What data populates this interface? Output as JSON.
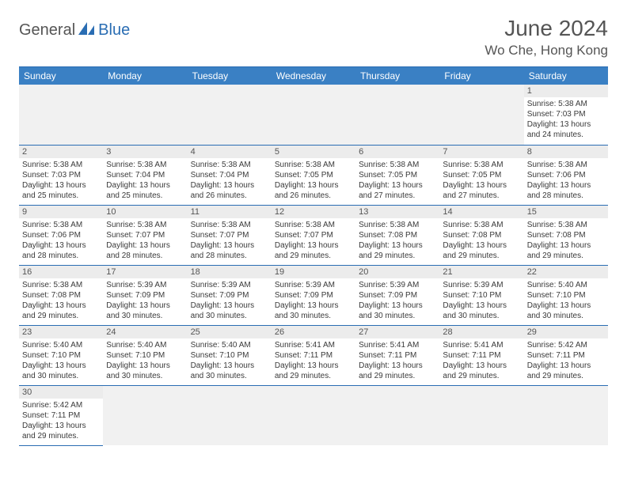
{
  "logo": {
    "text1": "General",
    "text2": "Blue"
  },
  "header": {
    "month": "June 2024",
    "location": "Wo Che, Hong Kong"
  },
  "colors": {
    "header_bg": "#3a80c4",
    "header_text": "#ffffff",
    "border": "#2a6db3",
    "daynum_bg": "#ececec",
    "empty_bg": "#f1f1f1",
    "title_color": "#555555",
    "body_text": "#3a3a3a"
  },
  "dayNames": [
    "Sunday",
    "Monday",
    "Tuesday",
    "Wednesday",
    "Thursday",
    "Friday",
    "Saturday"
  ],
  "weeks": [
    [
      null,
      null,
      null,
      null,
      null,
      null,
      {
        "n": "1",
        "sr": "Sunrise: 5:38 AM",
        "ss": "Sunset: 7:03 PM",
        "d1": "Daylight: 13 hours",
        "d2": "and 24 minutes."
      }
    ],
    [
      {
        "n": "2",
        "sr": "Sunrise: 5:38 AM",
        "ss": "Sunset: 7:03 PM",
        "d1": "Daylight: 13 hours",
        "d2": "and 25 minutes."
      },
      {
        "n": "3",
        "sr": "Sunrise: 5:38 AM",
        "ss": "Sunset: 7:04 PM",
        "d1": "Daylight: 13 hours",
        "d2": "and 25 minutes."
      },
      {
        "n": "4",
        "sr": "Sunrise: 5:38 AM",
        "ss": "Sunset: 7:04 PM",
        "d1": "Daylight: 13 hours",
        "d2": "and 26 minutes."
      },
      {
        "n": "5",
        "sr": "Sunrise: 5:38 AM",
        "ss": "Sunset: 7:05 PM",
        "d1": "Daylight: 13 hours",
        "d2": "and 26 minutes."
      },
      {
        "n": "6",
        "sr": "Sunrise: 5:38 AM",
        "ss": "Sunset: 7:05 PM",
        "d1": "Daylight: 13 hours",
        "d2": "and 27 minutes."
      },
      {
        "n": "7",
        "sr": "Sunrise: 5:38 AM",
        "ss": "Sunset: 7:05 PM",
        "d1": "Daylight: 13 hours",
        "d2": "and 27 minutes."
      },
      {
        "n": "8",
        "sr": "Sunrise: 5:38 AM",
        "ss": "Sunset: 7:06 PM",
        "d1": "Daylight: 13 hours",
        "d2": "and 28 minutes."
      }
    ],
    [
      {
        "n": "9",
        "sr": "Sunrise: 5:38 AM",
        "ss": "Sunset: 7:06 PM",
        "d1": "Daylight: 13 hours",
        "d2": "and 28 minutes."
      },
      {
        "n": "10",
        "sr": "Sunrise: 5:38 AM",
        "ss": "Sunset: 7:07 PM",
        "d1": "Daylight: 13 hours",
        "d2": "and 28 minutes."
      },
      {
        "n": "11",
        "sr": "Sunrise: 5:38 AM",
        "ss": "Sunset: 7:07 PM",
        "d1": "Daylight: 13 hours",
        "d2": "and 28 minutes."
      },
      {
        "n": "12",
        "sr": "Sunrise: 5:38 AM",
        "ss": "Sunset: 7:07 PM",
        "d1": "Daylight: 13 hours",
        "d2": "and 29 minutes."
      },
      {
        "n": "13",
        "sr": "Sunrise: 5:38 AM",
        "ss": "Sunset: 7:08 PM",
        "d1": "Daylight: 13 hours",
        "d2": "and 29 minutes."
      },
      {
        "n": "14",
        "sr": "Sunrise: 5:38 AM",
        "ss": "Sunset: 7:08 PM",
        "d1": "Daylight: 13 hours",
        "d2": "and 29 minutes."
      },
      {
        "n": "15",
        "sr": "Sunrise: 5:38 AM",
        "ss": "Sunset: 7:08 PM",
        "d1": "Daylight: 13 hours",
        "d2": "and 29 minutes."
      }
    ],
    [
      {
        "n": "16",
        "sr": "Sunrise: 5:38 AM",
        "ss": "Sunset: 7:08 PM",
        "d1": "Daylight: 13 hours",
        "d2": "and 29 minutes."
      },
      {
        "n": "17",
        "sr": "Sunrise: 5:39 AM",
        "ss": "Sunset: 7:09 PM",
        "d1": "Daylight: 13 hours",
        "d2": "and 30 minutes."
      },
      {
        "n": "18",
        "sr": "Sunrise: 5:39 AM",
        "ss": "Sunset: 7:09 PM",
        "d1": "Daylight: 13 hours",
        "d2": "and 30 minutes."
      },
      {
        "n": "19",
        "sr": "Sunrise: 5:39 AM",
        "ss": "Sunset: 7:09 PM",
        "d1": "Daylight: 13 hours",
        "d2": "and 30 minutes."
      },
      {
        "n": "20",
        "sr": "Sunrise: 5:39 AM",
        "ss": "Sunset: 7:09 PM",
        "d1": "Daylight: 13 hours",
        "d2": "and 30 minutes."
      },
      {
        "n": "21",
        "sr": "Sunrise: 5:39 AM",
        "ss": "Sunset: 7:10 PM",
        "d1": "Daylight: 13 hours",
        "d2": "and 30 minutes."
      },
      {
        "n": "22",
        "sr": "Sunrise: 5:40 AM",
        "ss": "Sunset: 7:10 PM",
        "d1": "Daylight: 13 hours",
        "d2": "and 30 minutes."
      }
    ],
    [
      {
        "n": "23",
        "sr": "Sunrise: 5:40 AM",
        "ss": "Sunset: 7:10 PM",
        "d1": "Daylight: 13 hours",
        "d2": "and 30 minutes."
      },
      {
        "n": "24",
        "sr": "Sunrise: 5:40 AM",
        "ss": "Sunset: 7:10 PM",
        "d1": "Daylight: 13 hours",
        "d2": "and 30 minutes."
      },
      {
        "n": "25",
        "sr": "Sunrise: 5:40 AM",
        "ss": "Sunset: 7:10 PM",
        "d1": "Daylight: 13 hours",
        "d2": "and 30 minutes."
      },
      {
        "n": "26",
        "sr": "Sunrise: 5:41 AM",
        "ss": "Sunset: 7:11 PM",
        "d1": "Daylight: 13 hours",
        "d2": "and 29 minutes."
      },
      {
        "n": "27",
        "sr": "Sunrise: 5:41 AM",
        "ss": "Sunset: 7:11 PM",
        "d1": "Daylight: 13 hours",
        "d2": "and 29 minutes."
      },
      {
        "n": "28",
        "sr": "Sunrise: 5:41 AM",
        "ss": "Sunset: 7:11 PM",
        "d1": "Daylight: 13 hours",
        "d2": "and 29 minutes."
      },
      {
        "n": "29",
        "sr": "Sunrise: 5:42 AM",
        "ss": "Sunset: 7:11 PM",
        "d1": "Daylight: 13 hours",
        "d2": "and 29 minutes."
      }
    ],
    [
      {
        "n": "30",
        "sr": "Sunrise: 5:42 AM",
        "ss": "Sunset: 7:11 PM",
        "d1": "Daylight: 13 hours",
        "d2": "and 29 minutes."
      },
      null,
      null,
      null,
      null,
      null,
      null
    ]
  ]
}
